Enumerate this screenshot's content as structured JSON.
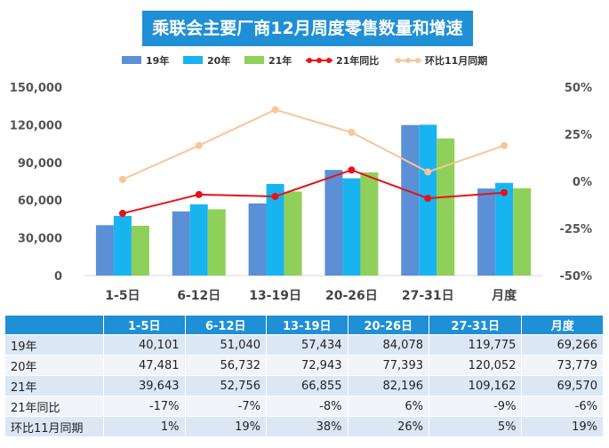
{
  "title": "乘联会主要厂商12月周度零售数量和增速",
  "colors": {
    "title_bg": "#1f8fd6",
    "s19": "#5b8fd6",
    "s20": "#18b4f0",
    "s21": "#8fd05a",
    "yoy": "#e8111a",
    "mom": "#f9c49a"
  },
  "chart_data": {
    "type": "bar",
    "categories": [
      "1-5日",
      "6-12日",
      "13-19日",
      "20-26日",
      "27-31日",
      "月度"
    ],
    "series": [
      {
        "name": "19年",
        "kind": "bar",
        "values": [
          40101,
          51040,
          57434,
          84078,
          119775,
          69266
        ]
      },
      {
        "name": "20年",
        "kind": "bar",
        "values": [
          47481,
          56732,
          72943,
          77393,
          120052,
          73779
        ]
      },
      {
        "name": "21年",
        "kind": "bar",
        "values": [
          39643,
          52756,
          66855,
          82196,
          109162,
          69570
        ]
      },
      {
        "name": "21年同比",
        "kind": "line",
        "axis": "right",
        "values": [
          -17,
          -7,
          -8,
          6,
          -9,
          -6
        ]
      },
      {
        "name": "环比11月同期",
        "kind": "line",
        "axis": "right",
        "values": [
          1,
          19,
          38,
          26,
          5,
          19
        ]
      }
    ],
    "ylim": [
      0,
      150000
    ],
    "yticks": [
      "150,000",
      "120,000",
      "90,000",
      "60,000",
      "30,000",
      "0"
    ],
    "y2lim": [
      -50,
      50
    ],
    "y2ticks": [
      "50%",
      "25%",
      "0%",
      "-25%",
      "-50%"
    ],
    "legend_position": "top"
  },
  "table": {
    "headers": [
      "",
      "1-5日",
      "6-12日",
      "13-19日",
      "20-26日",
      "27-31日",
      "月度"
    ],
    "rows": [
      [
        "19年",
        "40,101",
        "51,040",
        "57,434",
        "84,078",
        "119,775",
        "69,266"
      ],
      [
        "20年",
        "47,481",
        "56,732",
        "72,943",
        "77,393",
        "120,052",
        "73,779"
      ],
      [
        "21年",
        "39,643",
        "52,756",
        "66,855",
        "82,196",
        "109,162",
        "69,570"
      ],
      [
        "21年同比",
        "-17%",
        "-7%",
        "-8%",
        "6%",
        "-9%",
        "-6%"
      ],
      [
        "环比11月同期",
        "1%",
        "19%",
        "38%",
        "26%",
        "5%",
        "19%"
      ]
    ]
  }
}
